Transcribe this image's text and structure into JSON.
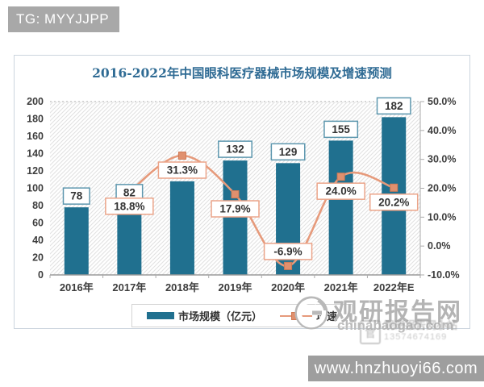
{
  "badge": {
    "text": "TG: MYYJJPP"
  },
  "chart_data": {
    "type": "bar",
    "title": "2016-2022年中国眼科医疗器械市场规模及增速预测",
    "categories": [
      "2016年",
      "2017年",
      "2018年",
      "2019年",
      "2020年",
      "2021年",
      "2022年E"
    ],
    "series": [
      {
        "name": "市场规模（亿元）",
        "type": "bar",
        "axis": "left",
        "color": "#20708f",
        "values": [
          78,
          82,
          108,
          132,
          129,
          155,
          182
        ],
        "labels": [
          "78",
          "82",
          null,
          "132",
          "129",
          "155",
          "182"
        ]
      },
      {
        "name": "增速",
        "type": "line",
        "axis": "right",
        "color": "#e69a7b",
        "values": [
          null,
          18.8,
          31.3,
          17.9,
          -6.9,
          24.0,
          20.2
        ],
        "labels": [
          null,
          "18.8%",
          "31.3%",
          "17.9%",
          "-6.9%",
          "24.0%",
          "20.2%"
        ],
        "label_side": [
          null,
          "below",
          "below",
          "below",
          "above",
          "below",
          "below"
        ]
      }
    ],
    "left_axis": {
      "min": 0,
      "max": 200,
      "tick_step": 20,
      "ticks": [
        "0",
        "20",
        "40",
        "60",
        "80",
        "100",
        "120",
        "140",
        "160",
        "180",
        "200"
      ]
    },
    "right_axis": {
      "min": -10,
      "max": 50,
      "tick_step": 10,
      "ticks": [
        "-10.0%",
        "0.0%",
        "10.0%",
        "20.0%",
        "30.0%",
        "40.0%",
        "50.0%"
      ]
    },
    "legend_position": "bottom",
    "grid": "top-dotted-only",
    "plot_background": "diagonal-hatch"
  },
  "colors": {
    "bar": "#20708f",
    "line": "#e69a7b",
    "marker_fill": "#e0906e",
    "marker_stroke": "#d07a55",
    "bar_label_border": "#5d97ae",
    "line_label_border": "#eba489",
    "title": "#2f6b94",
    "axis_text": "#3d3d3d",
    "hatch": "#e2e2e2",
    "axis_line": "#9a9a9a"
  },
  "watermark": {
    "site_name": "观研报告网",
    "site_url": "chinabaogao.com",
    "stamp_seal": "官",
    "stamp_line1": "观研报告网小站",
    "stamp_line2": "13574674169"
  },
  "footer": {
    "url": "www.hnzhuoyi66.com"
  }
}
